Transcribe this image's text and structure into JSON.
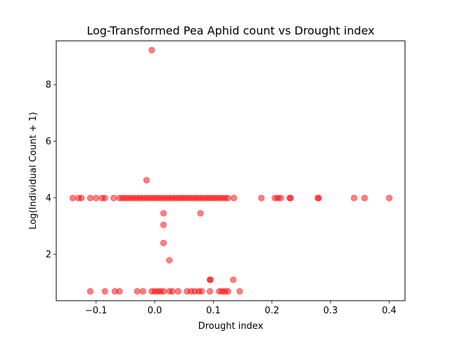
{
  "chart_data": {
    "type": "scatter",
    "title": "Log-Transformed Pea Aphid count vs Drought index",
    "xlabel": "Drought index",
    "ylabel": "Log(Individual Count + 1)",
    "xlim": [
      -0.168,
      0.427
    ],
    "ylim": [
      0.36,
      9.55
    ],
    "xticks": [
      -0.1,
      0.0,
      0.1,
      0.2,
      0.3,
      0.4
    ],
    "xtick_labels": [
      "−0.1",
      "0.0",
      "0.1",
      "0.2",
      "0.3",
      "0.4"
    ],
    "yticks": [
      2,
      4,
      6,
      8
    ],
    "ytick_labels": [
      "2",
      "4",
      "6",
      "8"
    ],
    "grid": false,
    "marker_color": "#ff0000",
    "marker_alpha": 0.5,
    "x": [
      -0.14,
      -0.13,
      -0.125,
      -0.11,
      -0.1,
      -0.09,
      -0.085,
      -0.07,
      -0.06,
      -0.055,
      -0.05,
      -0.045,
      -0.04,
      -0.035,
      -0.03,
      -0.025,
      -0.02,
      -0.015,
      -0.01,
      -0.005,
      0.0,
      0.005,
      0.01,
      0.015,
      0.02,
      0.025,
      0.03,
      0.035,
      0.04,
      0.045,
      0.05,
      0.055,
      0.06,
      0.065,
      0.07,
      0.075,
      0.08,
      0.085,
      0.09,
      0.095,
      0.1,
      0.105,
      0.11,
      0.115,
      0.12,
      0.125,
      0.135,
      0.182,
      0.205,
      0.21,
      0.215,
      0.23,
      0.232,
      0.278,
      0.28,
      0.34,
      0.358,
      0.4,
      -0.005,
      -0.014,
      0.015,
      0.015,
      0.015,
      0.078,
      0.025,
      0.094,
      0.095,
      0.134,
      -0.11,
      -0.085,
      -0.068,
      -0.06,
      -0.03,
      -0.02,
      -0.005,
      0.0,
      0.005,
      0.01,
      0.015,
      0.025,
      0.03,
      0.04,
      0.055,
      0.062,
      0.068,
      0.075,
      0.08,
      0.094,
      0.11,
      0.115,
      0.12,
      0.125,
      0.145
    ],
    "y": [
      3.99,
      3.99,
      3.99,
      3.99,
      3.99,
      3.99,
      3.99,
      3.99,
      3.99,
      3.99,
      3.99,
      3.99,
      3.99,
      3.99,
      3.99,
      3.99,
      3.99,
      3.99,
      3.99,
      3.99,
      3.99,
      3.99,
      3.99,
      3.99,
      3.99,
      3.99,
      3.99,
      3.99,
      3.99,
      3.99,
      3.99,
      3.99,
      3.99,
      3.99,
      3.99,
      3.99,
      3.99,
      3.99,
      3.99,
      3.99,
      3.99,
      3.99,
      3.99,
      3.99,
      3.99,
      3.99,
      3.99,
      3.99,
      3.99,
      3.99,
      3.99,
      3.99,
      3.99,
      3.99,
      3.99,
      3.99,
      3.99,
      3.99,
      9.22,
      4.62,
      3.45,
      3.04,
      2.4,
      3.45,
      1.79,
      1.1,
      1.1,
      1.1,
      0.69,
      0.69,
      0.69,
      0.69,
      0.69,
      0.69,
      0.69,
      0.69,
      0.69,
      0.69,
      0.69,
      0.69,
      0.69,
      0.69,
      0.69,
      0.69,
      0.69,
      0.69,
      0.69,
      0.69,
      0.69,
      0.69,
      0.69,
      0.69,
      0.69
    ]
  }
}
